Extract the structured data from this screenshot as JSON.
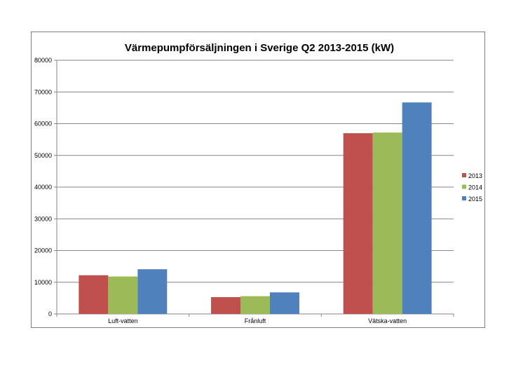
{
  "chart_data": {
    "type": "bar",
    "title": "Värmepumpförsäljningen i Sverige Q2 2013-2015 (kW)",
    "xlabel": "",
    "ylabel": "",
    "categories": [
      "Luft-vatten",
      "Frånluft",
      "Vätska-vatten"
    ],
    "series": [
      {
        "name": "2013",
        "color": "#c0504d",
        "values": [
          12200,
          5300,
          57000
        ]
      },
      {
        "name": "2014",
        "color": "#9bbb59",
        "values": [
          11800,
          5600,
          57200
        ]
      },
      {
        "name": "2015",
        "color": "#4f81bd",
        "values": [
          14100,
          6800,
          66700
        ]
      }
    ],
    "ylim": [
      0,
      80000
    ],
    "yticks": [
      "0",
      "10000",
      "20000",
      "30000",
      "40000",
      "50000",
      "60000",
      "70000",
      "80000"
    ],
    "grid": true,
    "legend_position": "right"
  }
}
